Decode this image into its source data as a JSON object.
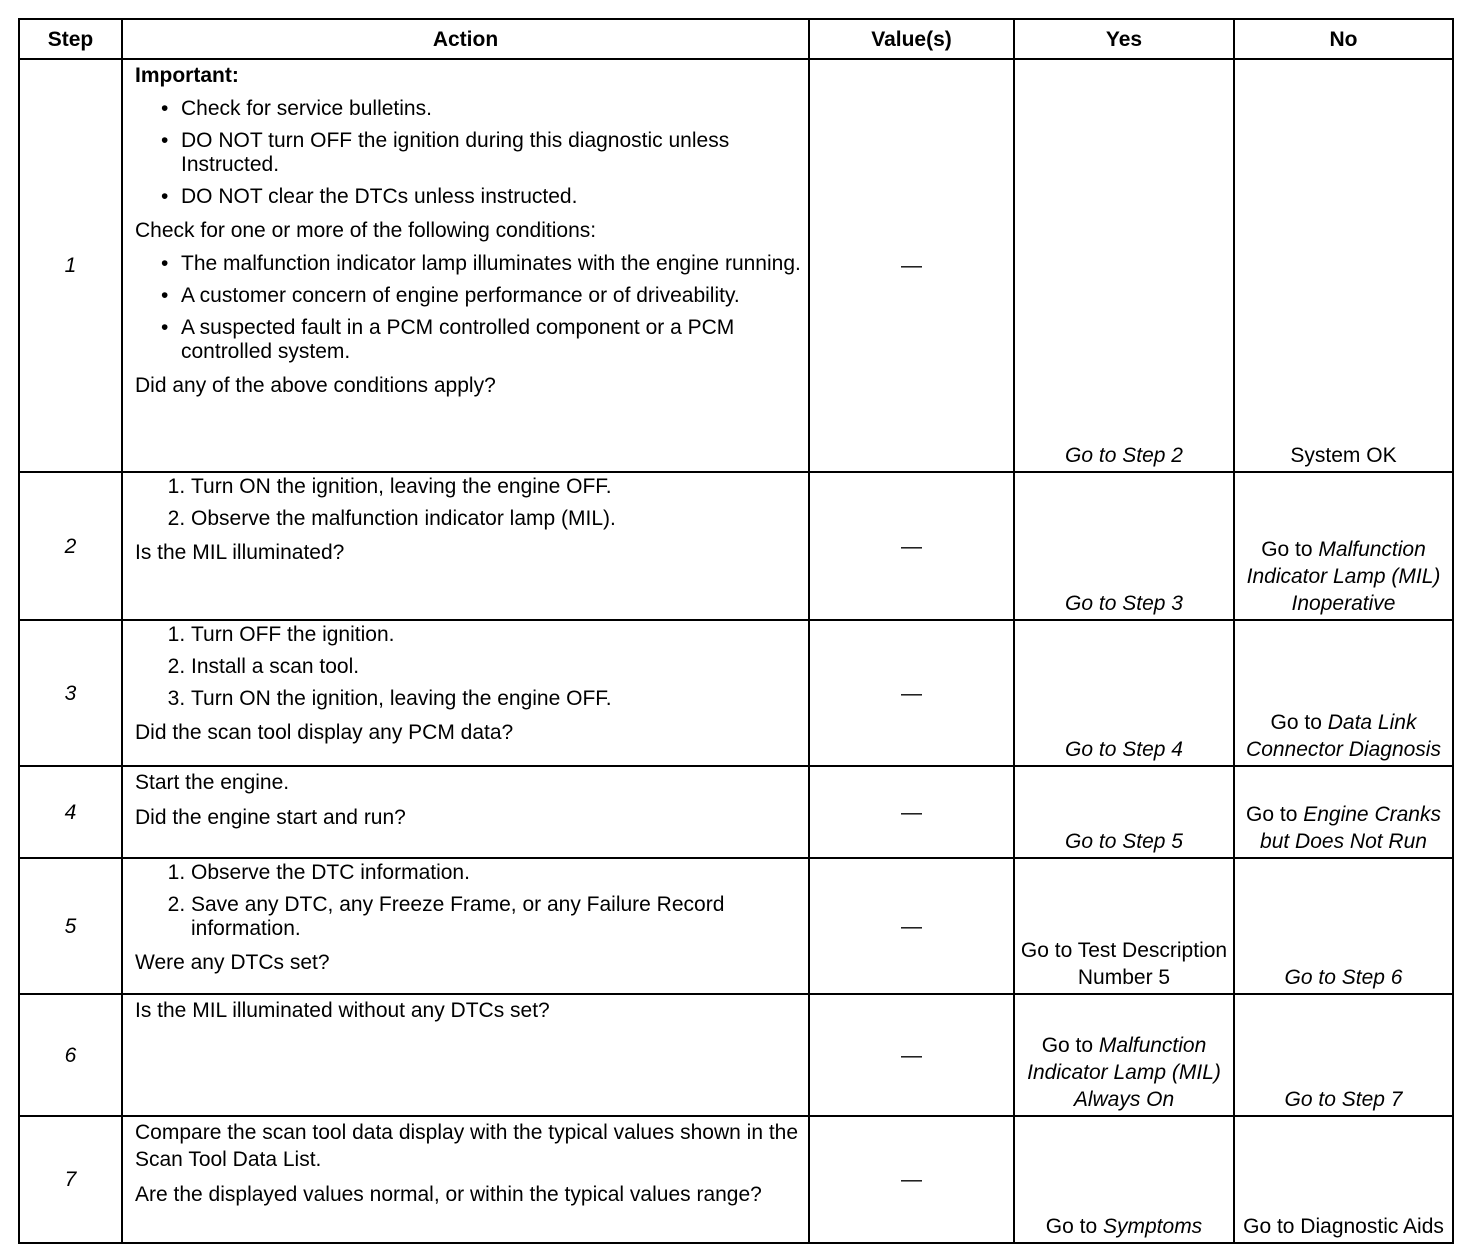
{
  "headers": [
    "Step",
    "Action",
    "Value(s)",
    "Yes",
    "No"
  ],
  "rows": [
    {
      "step": "1",
      "value": "—",
      "action": [
        {
          "type": "p",
          "bold": true,
          "text": "Important:"
        },
        {
          "type": "ul",
          "items": [
            "Check for service bulletins.",
            "DO NOT turn OFF the ignition during this diagnostic unless Instructed.",
            "DO NOT clear the DTCs unless instructed."
          ]
        },
        {
          "type": "p",
          "text": "Check for one or more of the following conditions:"
        },
        {
          "type": "ul",
          "items": [
            "The malfunction indicator lamp illuminates with the engine running.",
            "A customer concern of engine performance or of driveability.",
            "A suspected fault in a PCM controlled component or a PCM controlled system."
          ]
        },
        {
          "type": "p",
          "text": "Did any of the above conditions apply?"
        }
      ],
      "yes": [
        {
          "text": "Go to Step 2",
          "italic": true
        }
      ],
      "no": [
        {
          "text": "System OK",
          "italic": false
        }
      ]
    },
    {
      "step": "2",
      "value": "—",
      "action": [
        {
          "type": "ol",
          "items": [
            "Turn ON the ignition, leaving the engine OFF.",
            "Observe the malfunction indicator lamp (MIL)."
          ]
        },
        {
          "type": "p",
          "text": "Is the MIL illuminated?"
        }
      ],
      "yes": [
        {
          "text": "Go to Step 3",
          "italic": true
        }
      ],
      "no": [
        {
          "text": "Go to ",
          "italic": false
        },
        {
          "text": "Malfunction Indicator Lamp (MIL) Inoperative",
          "italic": true
        }
      ]
    },
    {
      "step": "3",
      "value": "—",
      "action": [
        {
          "type": "ol",
          "items": [
            "Turn OFF the ignition.",
            "Install a scan tool.",
            "Turn ON the ignition, leaving the engine OFF."
          ]
        },
        {
          "type": "p",
          "text": "Did the scan tool display any PCM data?"
        }
      ],
      "yes": [
        {
          "text": "Go to Step 4",
          "italic": true
        }
      ],
      "no": [
        {
          "text": "Go to ",
          "italic": false
        },
        {
          "text": "Data Link Connector Diagnosis",
          "italic": true
        }
      ]
    },
    {
      "step": "4",
      "value": "—",
      "action": [
        {
          "type": "p",
          "text": "Start the engine."
        },
        {
          "type": "p",
          "text": "Did the engine start and run?"
        }
      ],
      "yes": [
        {
          "text": "Go to Step 5",
          "italic": true
        }
      ],
      "no": [
        {
          "text": "Go to ",
          "italic": false
        },
        {
          "text": "Engine Cranks but Does Not Run",
          "italic": true
        }
      ]
    },
    {
      "step": "5",
      "value": "—",
      "action": [
        {
          "type": "ol",
          "items": [
            "Observe the DTC information.",
            "Save any DTC, any Freeze Frame, or any Failure Record information."
          ]
        },
        {
          "type": "p",
          "text": "Were any DTCs set?"
        }
      ],
      "yes": [
        {
          "text": "Go to Test Description Number 5",
          "italic": false
        }
      ],
      "no": [
        {
          "text": "Go to Step 6",
          "italic": true
        }
      ]
    },
    {
      "step": "6",
      "value": "—",
      "action": [
        {
          "type": "p",
          "text": "Is the MIL illuminated without any DTCs set?"
        }
      ],
      "yes": [
        {
          "text": "Go to ",
          "italic": false
        },
        {
          "text": "Malfunction Indicator Lamp (MIL) Always On",
          "italic": true
        }
      ],
      "no": [
        {
          "text": "Go to Step 7",
          "italic": true
        }
      ]
    },
    {
      "step": "7",
      "value": "—",
      "action": [
        {
          "type": "p",
          "text": "Compare the scan tool data display with the typical values shown in the Scan Tool Data List."
        },
        {
          "type": "p",
          "text": "Are the displayed values normal, or within the typical values range?"
        }
      ],
      "yes": [
        {
          "text": "Go to ",
          "italic": false
        },
        {
          "text": "Symptoms",
          "italic": true
        }
      ],
      "no": [
        {
          "text": "Go to Diagnostic Aids",
          "italic": false
        }
      ]
    }
  ]
}
